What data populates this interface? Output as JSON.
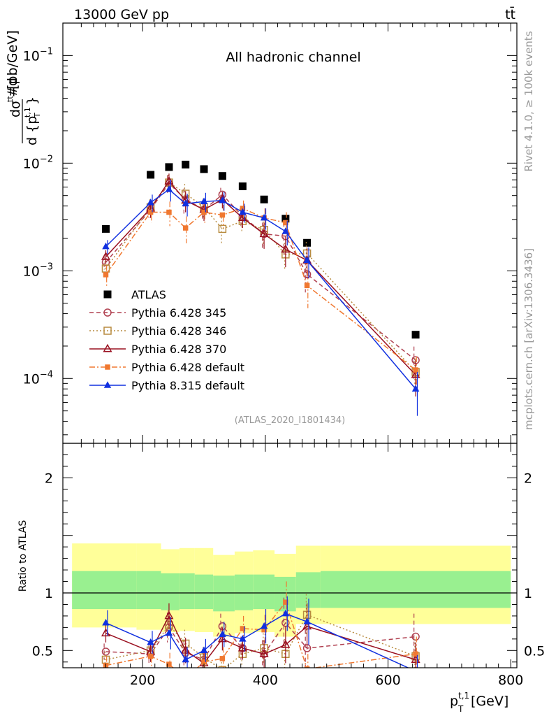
{
  "header": {
    "beam": "13000 GeV pp",
    "process": "tt̄",
    "channel": "All hadronic channel",
    "analysis_id": "(ATLAS_2020_I1801434)",
    "side_rivet": "Rivet 4.1.0, ≥ 100k events",
    "side_site": "mcplots.cern.ch [arXiv:1306.3436]"
  },
  "chart_data": [
    {
      "type": "scatter",
      "panel": "main",
      "ylabel": "#d dσ^{tt} / d {p_T^{t,1}} [pb/GeV]",
      "xlabel": "p_T^{t,1} [GeV]",
      "x_scale": "linear",
      "y_scale": "log",
      "xlim": [
        70,
        810
      ],
      "ylim": [
        2.5e-05,
        0.2
      ],
      "x_ticks": [
        200,
        400,
        600,
        800
      ],
      "y_tick_labels": [
        "10^{-4}",
        "10^{-3}",
        "10^{-2}",
        "10^{-1}"
      ],
      "y_tick_values": [
        0.0001,
        0.001,
        0.01,
        0.1
      ],
      "legend_position": "center-left",
      "series": [
        {
          "name": "ATLAS",
          "color": "#000000",
          "marker": "square-filled",
          "line": "none",
          "x": [
            140,
            213,
            243,
            270,
            300,
            330,
            363,
            398,
            433,
            468,
            645
          ],
          "y": [
            0.00245,
            0.0078,
            0.0092,
            0.0097,
            0.0088,
            0.0076,
            0.0061,
            0.0046,
            0.00305,
            0.00182,
            0.000255
          ]
        },
        {
          "name": "Pythia 6.428 345",
          "color": "#b04050",
          "marker": "circle-open",
          "line": "dashed",
          "x": [
            140,
            213,
            243,
            270,
            300,
            330,
            363,
            398,
            433,
            468,
            645
          ],
          "y": [
            0.0012,
            0.0037,
            0.0065,
            0.0046,
            0.0037,
            0.0051,
            0.0032,
            0.0022,
            0.0021,
            0.00093,
            0.000148
          ],
          "err": [
            0.00018,
            0.0006,
            0.0012,
            0.0012,
            0.0008,
            0.0008,
            0.0006,
            0.0006,
            0.0007,
            0.0003,
            5e-05
          ]
        },
        {
          "name": "Pythia 6.428 346",
          "color": "#b88c40",
          "marker": "square-open",
          "line": "dotted",
          "x": [
            140,
            213,
            243,
            270,
            300,
            330,
            363,
            398,
            433,
            468,
            645
          ],
          "y": [
            0.00105,
            0.0039,
            0.0066,
            0.0052,
            0.0039,
            0.00245,
            0.0029,
            0.0024,
            0.00142,
            0.00145,
            0.000115
          ],
          "err": [
            0.00018,
            0.0007,
            0.0012,
            0.0012,
            0.0008,
            0.0007,
            0.0006,
            0.0007,
            0.0004,
            0.0004,
            4e-05
          ]
        },
        {
          "name": "Pythia 6.428 370",
          "color": "#9a1020",
          "marker": "triangle-open",
          "line": "solid",
          "x": [
            140,
            213,
            243,
            270,
            300,
            330,
            363,
            398,
            433,
            468,
            645
          ],
          "y": [
            0.00135,
            0.0038,
            0.0068,
            0.0045,
            0.0037,
            0.0046,
            0.0031,
            0.0022,
            0.00158,
            0.00125,
            0.000108
          ],
          "err": [
            0.0002,
            0.0007,
            0.0012,
            0.001,
            0.0008,
            0.0008,
            0.0006,
            0.0006,
            0.0005,
            0.0004,
            4e-05
          ]
        },
        {
          "name": "Pythia 6.428 default",
          "color": "#f07830",
          "marker": "square-filled-small",
          "line": "dashdot",
          "x": [
            140,
            213,
            243,
            270,
            300,
            330,
            363,
            398,
            433,
            468,
            645
          ],
          "y": [
            0.00092,
            0.0035,
            0.0035,
            0.0025,
            0.0035,
            0.0033,
            0.0038,
            0.0031,
            0.0028,
            0.00073,
            0.00012
          ],
          "err": [
            0.0002,
            0.0007,
            0.0009,
            0.0007,
            0.0008,
            0.0008,
            0.0007,
            0.0007,
            0.0007,
            0.00028,
            4e-05
          ]
        },
        {
          "name": "Pythia 8.315 default",
          "color": "#1030e0",
          "marker": "triangle-filled",
          "line": "solid",
          "x": [
            140,
            213,
            243,
            270,
            300,
            330,
            363,
            398,
            433,
            468,
            645
          ],
          "y": [
            0.00168,
            0.0043,
            0.0057,
            0.0042,
            0.0044,
            0.0045,
            0.0035,
            0.0031,
            0.00232,
            0.00125,
            8e-05
          ],
          "err": [
            0.00025,
            0.0008,
            0.0013,
            0.001,
            0.0009,
            0.0009,
            0.0007,
            0.0007,
            0.0006,
            0.0004,
            3.5e-05
          ]
        }
      ]
    },
    {
      "type": "line",
      "panel": "ratio",
      "ylabel": "Ratio to ATLAS",
      "xlim": [
        70,
        810
      ],
      "ylim": [
        0.35,
        2.3
      ],
      "y_ticks": [
        0.5,
        1,
        2
      ],
      "y_tick_labels": [
        "0.5",
        "1",
        "2"
      ],
      "bands": {
        "edges": [
          85,
          190,
          230,
          260,
          285,
          315,
          350,
          380,
          415,
          450,
          490,
          800
        ],
        "inner_lo": [
          0.86,
          0.86,
          0.85,
          0.86,
          0.86,
          0.84,
          0.85,
          0.86,
          0.84,
          0.87,
          0.87
        ],
        "inner_hi": [
          1.19,
          1.19,
          1.17,
          1.17,
          1.16,
          1.15,
          1.16,
          1.16,
          1.14,
          1.18,
          1.19
        ],
        "outer_lo": [
          0.7,
          0.68,
          0.66,
          0.67,
          0.66,
          0.62,
          0.65,
          0.66,
          0.62,
          0.73,
          0.73
        ],
        "outer_hi": [
          1.43,
          1.43,
          1.38,
          1.39,
          1.39,
          1.33,
          1.36,
          1.37,
          1.34,
          1.41,
          1.41
        ],
        "inner_color": "#99f090",
        "outer_color": "#ffff99"
      },
      "series": [
        {
          "name": "Pythia 6.428 345",
          "x": [
            140,
            213,
            243,
            270,
            300,
            330,
            363,
            398,
            433,
            468,
            645
          ],
          "y": [
            0.49,
            0.47,
            0.7,
            0.48,
            0.42,
            0.71,
            0.52,
            0.47,
            0.74,
            0.52,
            0.62
          ],
          "err": [
            0.07,
            0.08,
            0.13,
            0.11,
            0.09,
            0.11,
            0.1,
            0.12,
            0.22,
            0.16,
            0.2
          ]
        },
        {
          "name": "Pythia 6.428 346",
          "x": [
            140,
            213,
            243,
            270,
            300,
            330,
            363,
            398,
            433,
            468,
            645
          ],
          "y": [
            0.42,
            0.5,
            0.72,
            0.56,
            0.44,
            0.33,
            0.47,
            0.52,
            0.47,
            0.81,
            0.45
          ],
          "err": [
            0.07,
            0.09,
            0.13,
            0.12,
            0.09,
            0.1,
            0.1,
            0.13,
            0.13,
            0.18,
            0.15
          ]
        },
        {
          "name": "Pythia 6.428 370",
          "x": [
            140,
            213,
            243,
            270,
            300,
            330,
            363,
            398,
            433,
            468,
            645
          ],
          "y": [
            0.65,
            0.49,
            0.8,
            0.5,
            0.39,
            0.6,
            0.52,
            0.47,
            0.55,
            0.71,
            0.42
          ],
          "err": [
            0.08,
            0.09,
            0.11,
            0.11,
            0.09,
            0.1,
            0.1,
            0.12,
            0.16,
            0.2,
            0.15
          ]
        },
        {
          "name": "Pythia 6.428 default",
          "x": [
            140,
            213,
            243,
            270,
            300,
            330,
            363,
            398,
            433,
            468,
            645
          ],
          "y": [
            0.37,
            0.45,
            0.38,
            0.26,
            0.4,
            0.43,
            0.69,
            0.68,
            0.92,
            0.34,
            0.47
          ],
          "err": [
            0.08,
            0.09,
            0.1,
            0.07,
            0.09,
            0.1,
            0.11,
            0.13,
            0.18,
            0.13,
            0.15
          ]
        },
        {
          "name": "Pythia 8.315 default",
          "x": [
            140,
            213,
            243,
            270,
            300,
            330,
            363,
            398,
            433,
            468,
            645
          ],
          "y": [
            0.74,
            0.57,
            0.65,
            0.42,
            0.5,
            0.64,
            0.6,
            0.71,
            0.82,
            0.75,
            0.32
          ],
          "err": [
            0.11,
            0.1,
            0.14,
            0.11,
            0.1,
            0.11,
            0.11,
            0.15,
            0.15,
            0.2,
            0.14
          ]
        }
      ]
    }
  ]
}
